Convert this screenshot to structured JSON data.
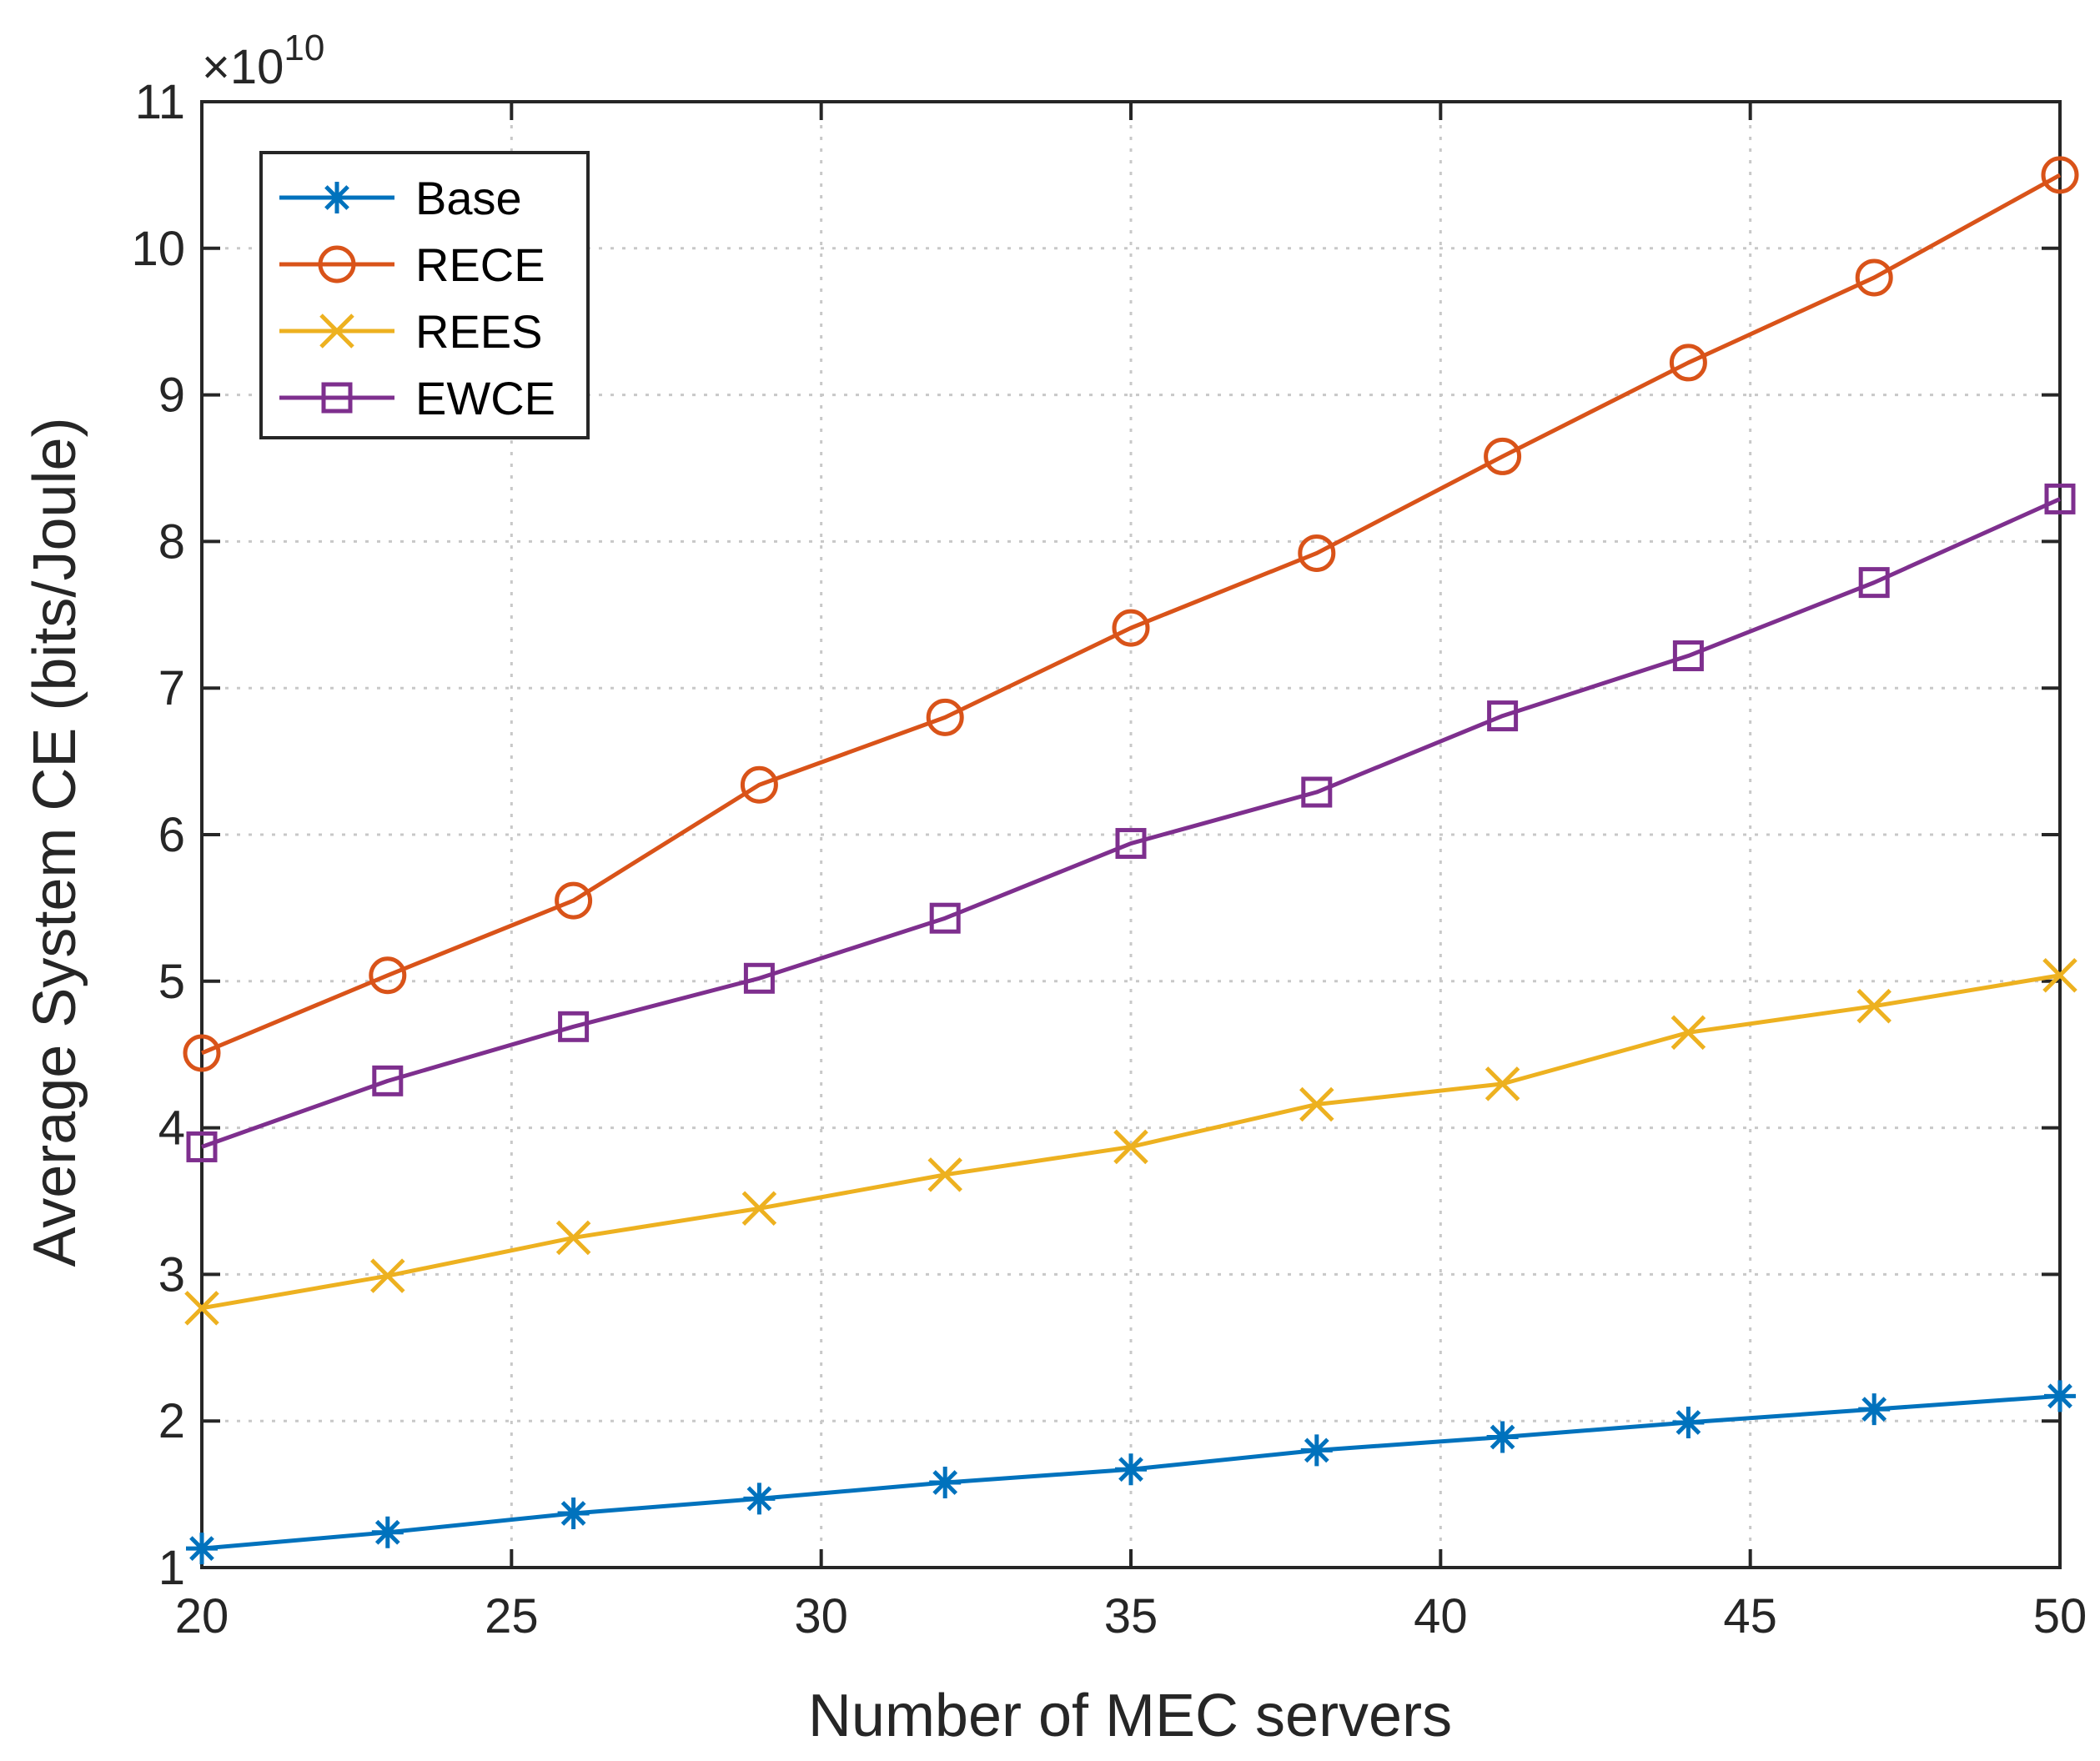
{
  "chart_data": {
    "type": "line",
    "title": "",
    "xlabel": "Number of MEC servers",
    "ylabel": "Average System CE (bits/Joule)",
    "y_exponent_label": "×10",
    "y_exponent_power": "10",
    "xlim": [
      20,
      50
    ],
    "ylim": [
      1,
      11
    ],
    "xticks": [
      20,
      25,
      30,
      35,
      40,
      45,
      50
    ],
    "yticks": [
      1,
      2,
      3,
      4,
      5,
      6,
      7,
      8,
      9,
      10,
      11
    ],
    "grid": true,
    "legend_position": "top-left",
    "x": [
      20,
      23,
      26,
      29,
      32,
      35,
      38,
      41,
      44,
      47,
      50
    ],
    "series": [
      {
        "name": "Base",
        "color": "#0072BD",
        "marker": "asterisk",
        "values": [
          1.13,
          1.24,
          1.37,
          1.47,
          1.58,
          1.67,
          1.8,
          1.89,
          1.99,
          2.08,
          2.17
        ]
      },
      {
        "name": "RECE",
        "color": "#D95319",
        "marker": "circle",
        "values": [
          4.51,
          5.04,
          5.55,
          6.34,
          6.8,
          7.41,
          7.92,
          8.58,
          9.22,
          9.8,
          10.5
        ]
      },
      {
        "name": "REES",
        "color": "#EDB120",
        "marker": "x",
        "values": [
          2.77,
          2.99,
          3.25,
          3.45,
          3.68,
          3.87,
          4.16,
          4.3,
          4.65,
          4.83,
          5.04
        ]
      },
      {
        "name": "EWCE",
        "color": "#7E2F8E",
        "marker": "square",
        "values": [
          3.87,
          4.32,
          4.69,
          5.02,
          5.43,
          5.94,
          6.29,
          6.81,
          7.22,
          7.72,
          8.29
        ]
      }
    ]
  }
}
